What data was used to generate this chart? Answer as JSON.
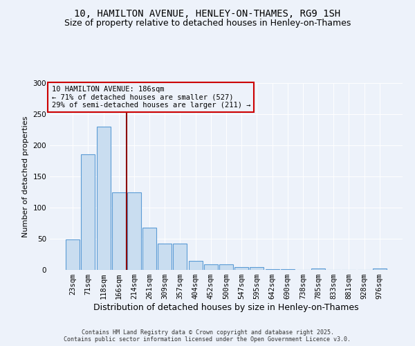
{
  "title": "10, HAMILTON AVENUE, HENLEY-ON-THAMES, RG9 1SH",
  "subtitle": "Size of property relative to detached houses in Henley-on-Thames",
  "xlabel": "Distribution of detached houses by size in Henley-on-Thames",
  "ylabel": "Number of detached properties",
  "categories": [
    "23sqm",
    "71sqm",
    "118sqm",
    "166sqm",
    "214sqm",
    "261sqm",
    "309sqm",
    "357sqm",
    "404sqm",
    "452sqm",
    "500sqm",
    "547sqm",
    "595sqm",
    "642sqm",
    "690sqm",
    "738sqm",
    "785sqm",
    "833sqm",
    "881sqm",
    "928sqm",
    "976sqm"
  ],
  "values": [
    49,
    186,
    230,
    125,
    125,
    68,
    42,
    42,
    15,
    9,
    9,
    5,
    4,
    1,
    1,
    0,
    2,
    0,
    0,
    0,
    2
  ],
  "bar_color": "#c9ddf0",
  "bar_edge_color": "#5b9bd5",
  "vline_color": "#8b0000",
  "annotation_text": "10 HAMILTON AVENUE: 186sqm\n← 71% of detached houses are smaller (527)\n29% of semi-detached houses are larger (211) →",
  "annotation_box_color": "#cc0000",
  "background_color": "#edf2fa",
  "ylim": [
    0,
    300
  ],
  "yticks": [
    0,
    50,
    100,
    150,
    200,
    250,
    300
  ],
  "title_fontsize": 10,
  "subtitle_fontsize": 9,
  "xlabel_fontsize": 9,
  "ylabel_fontsize": 8,
  "tick_fontsize": 7.5,
  "annotation_fontsize": 7.5,
  "footer_fontsize": 6,
  "footer_text": "Contains HM Land Registry data © Crown copyright and database right 2025.\nContains public sector information licensed under the Open Government Licence v3.0."
}
